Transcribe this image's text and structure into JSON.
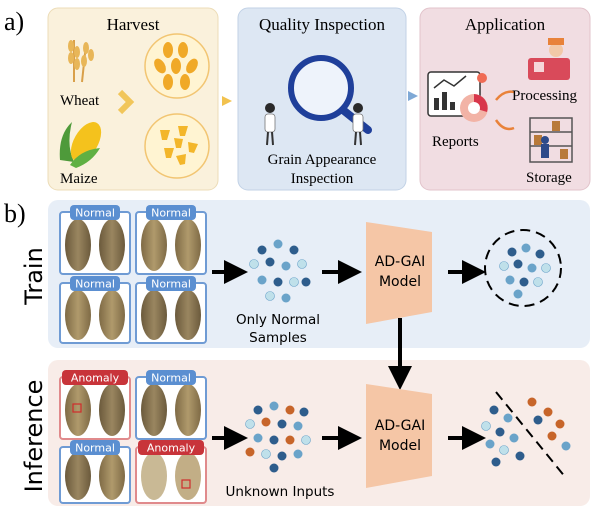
{
  "panel_a": {
    "label": "a)",
    "harvest": {
      "title": "Harvest",
      "wheat": "Wheat",
      "maize": "Maize"
    },
    "quality": {
      "title": "Quality Inspection",
      "caption_line1": "Grain Appearance",
      "caption_line2": "Inspection"
    },
    "application": {
      "title": "Application",
      "reports": "Reports",
      "processing": "Processing",
      "storage": "Storage"
    }
  },
  "panel_b": {
    "label": "b)",
    "train": {
      "row_label": "Train",
      "badges": [
        "Normal",
        "Normal",
        "Normal",
        "Normal"
      ],
      "samples_line1": "Only Normal",
      "samples_line2": "Samples",
      "model_line1": "AD-GAI",
      "model_line2": "Model"
    },
    "inference": {
      "row_label": "Inference",
      "badges": [
        "Anomaly",
        "Normal",
        "Normal",
        "Anomaly"
      ],
      "inputs_label": "Unknown Inputs",
      "model_line1": "AD-GAI",
      "model_line2": "Model"
    }
  },
  "colors": {
    "harvest_bg": "#faf1dc",
    "quality_bg": "#dde7f3",
    "application_bg": "#f1dde2",
    "train_bg": "#e7eef7",
    "inference_bg": "#f8ece8",
    "model_fill": "#f5c6a6",
    "normal_badge": "#5b8fd1",
    "anomaly_badge": "#c8343a",
    "dot_dark": "#2e5d8c",
    "dot_mid": "#6aa3c9",
    "dot_light": "#bfe0ea",
    "dot_orange": "#c7652a"
  }
}
